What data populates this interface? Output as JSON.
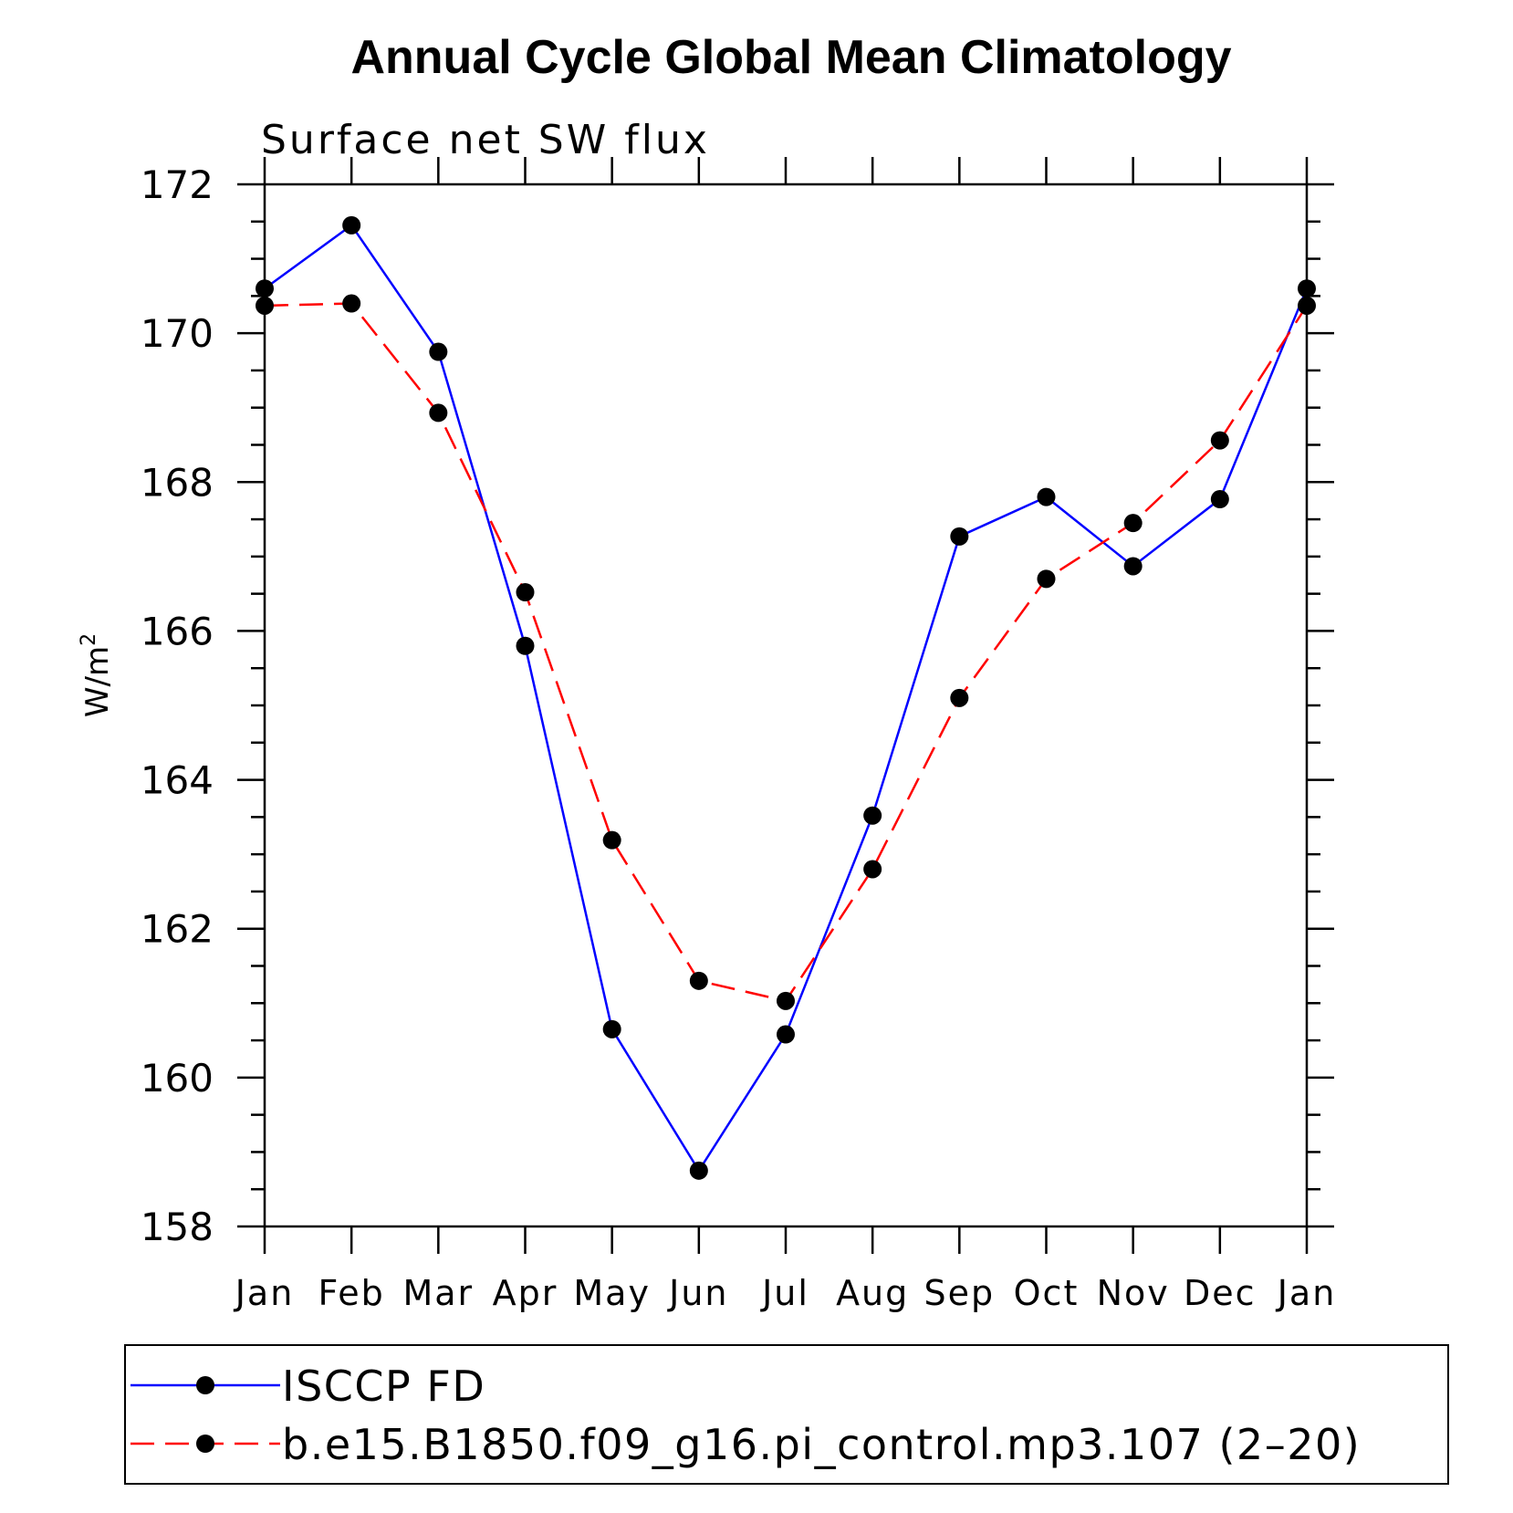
{
  "chart_data": {
    "type": "line",
    "title": "Annual Cycle Global Mean Climatology",
    "subtitle": "Surface net SW flux",
    "ylabel": "W/m",
    "ylabel_superscript": "2",
    "categories": [
      "Jan",
      "Feb",
      "Mar",
      "Apr",
      "May",
      "Jun",
      "Jul",
      "Aug",
      "Sep",
      "Oct",
      "Nov",
      "Dec",
      "Jan"
    ],
    "ylim": [
      158,
      172
    ],
    "yticks": [
      158,
      160,
      162,
      164,
      166,
      168,
      170,
      172
    ],
    "ytick_labels": [
      "158",
      "160",
      "162",
      "164",
      "166",
      "168",
      "170",
      "172"
    ],
    "grid": false,
    "legend_position": "bottom",
    "series": [
      {
        "name": "ISCCP FD",
        "color": "#0000ff",
        "dash": "solid",
        "values": [
          170.6,
          171.45,
          169.75,
          165.8,
          160.65,
          158.75,
          160.58,
          163.52,
          167.27,
          167.8,
          166.87,
          167.77,
          170.6
        ]
      },
      {
        "name": "b.e15.B1850.f09_g16.pi_control.mp3.107 (2–20)",
        "color": "#ff0000",
        "dash": "dashed",
        "values": [
          170.37,
          170.4,
          168.93,
          166.52,
          163.19,
          161.3,
          161.03,
          162.8,
          165.1,
          166.7,
          167.45,
          168.56,
          170.37
        ]
      }
    ]
  }
}
